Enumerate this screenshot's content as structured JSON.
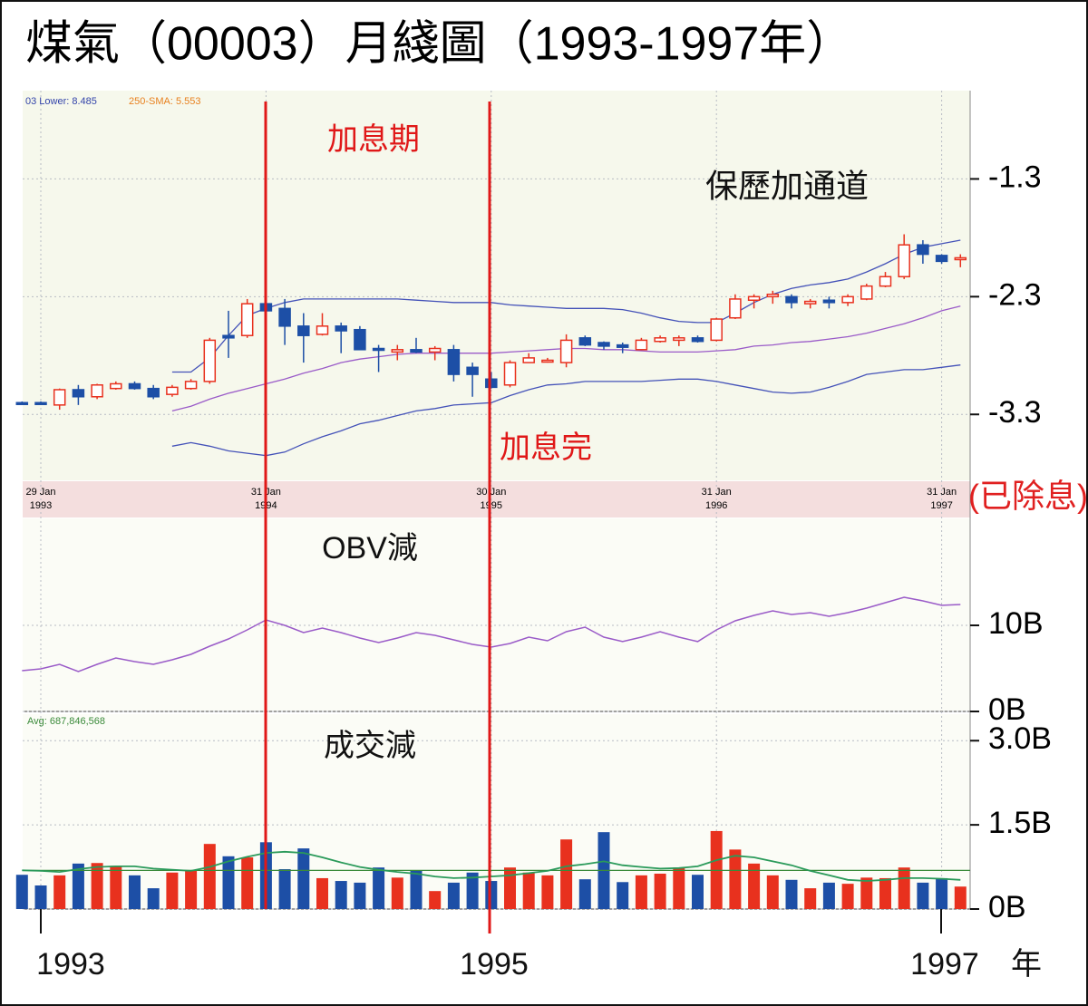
{
  "title": "煤氣（00003）月綫圖（1993-1997年）",
  "chart_data": [
    {
      "type": "candlestick",
      "legend_texts": [
        "03 Lower: 8.485",
        "250-SMA: 5.553"
      ],
      "annotations": [
        "加息期",
        "加息完",
        "保歷加通道"
      ],
      "note": "(已除息)",
      "categories": [
        null,
        "29 Jan\n1993",
        null,
        null,
        null,
        null,
        null,
        null,
        null,
        null,
        null,
        null,
        null,
        "31 Jan\n1994",
        null,
        null,
        null,
        null,
        null,
        null,
        null,
        null,
        null,
        null,
        null,
        "30 Jan\n1995",
        null,
        null,
        null,
        null,
        null,
        null,
        null,
        null,
        null,
        null,
        null,
        "31 Jan\n1996",
        null,
        null,
        null,
        null,
        null,
        null,
        null,
        null,
        null,
        null,
        null,
        "31 Jan\n1997",
        null
      ],
      "open": [
        -3.2,
        -3.2,
        -3.22,
        -3.09,
        -3.15,
        -3.08,
        -3.04,
        -3.08,
        -3.13,
        -3.08,
        -3.02,
        -2.63,
        -2.63,
        -2.36,
        -2.4,
        -2.55,
        -2.62,
        -2.55,
        -2.58,
        -2.74,
        -2.77,
        -2.75,
        -2.77,
        -2.75,
        -2.9,
        -3.0,
        -3.05,
        -2.86,
        -2.85,
        -2.86,
        -2.65,
        -2.69,
        -2.71,
        -2.75,
        -2.68,
        -2.67,
        -2.65,
        -2.67,
        -2.48,
        -2.33,
        -2.3,
        -2.3,
        -2.36,
        -2.33,
        -2.35,
        -2.32,
        -2.21,
        -2.13,
        -1.86,
        -1.95,
        -1.98
      ],
      "high": [
        -3.19,
        -3.19,
        -3.08,
        -3.05,
        -3.04,
        -3.02,
        -3.02,
        -3.05,
        -3.05,
        -3.0,
        -2.65,
        -2.42,
        -2.32,
        -2.28,
        -2.32,
        -2.44,
        -2.44,
        -2.52,
        -2.55,
        -2.71,
        -2.71,
        -2.65,
        -2.72,
        -2.71,
        -2.86,
        -2.94,
        -2.84,
        -2.78,
        -2.82,
        -2.62,
        -2.63,
        -2.68,
        -2.69,
        -2.65,
        -2.63,
        -2.63,
        -2.63,
        -2.48,
        -2.28,
        -2.28,
        -2.25,
        -2.28,
        -2.32,
        -2.3,
        -2.28,
        -2.19,
        -2.09,
        -1.77,
        -1.82,
        -1.94,
        -1.94
      ],
      "low": [
        -3.22,
        -3.22,
        -3.26,
        -3.22,
        -3.17,
        -3.09,
        -3.09,
        -3.17,
        -3.15,
        -3.09,
        -3.04,
        -2.82,
        -2.65,
        -2.44,
        -2.71,
        -2.86,
        -2.63,
        -2.78,
        -2.75,
        -2.94,
        -2.84,
        -2.78,
        -2.84,
        -3.02,
        -3.15,
        -3.08,
        -3.07,
        -2.86,
        -2.86,
        -2.9,
        -2.72,
        -2.75,
        -2.78,
        -2.75,
        -2.69,
        -2.72,
        -2.69,
        -2.68,
        -2.49,
        -2.4,
        -2.36,
        -2.4,
        -2.4,
        -2.4,
        -2.38,
        -2.33,
        -2.22,
        -2.15,
        -2.02,
        -2.02,
        -2.05
      ],
      "close": [
        -3.21,
        -3.21,
        -3.09,
        -3.15,
        -3.05,
        -3.04,
        -3.08,
        -3.15,
        -3.07,
        -3.02,
        -2.67,
        -2.65,
        -2.36,
        -2.42,
        -2.55,
        -2.63,
        -2.55,
        -2.59,
        -2.75,
        -2.75,
        -2.75,
        -2.77,
        -2.74,
        -2.96,
        -2.96,
        -3.07,
        -2.86,
        -2.82,
        -2.84,
        -2.67,
        -2.71,
        -2.72,
        -2.73,
        -2.67,
        -2.65,
        -2.65,
        -2.68,
        -2.49,
        -2.32,
        -2.3,
        -2.28,
        -2.35,
        -2.34,
        -2.35,
        -2.3,
        -2.21,
        -2.13,
        -1.86,
        -1.94,
        -2.0,
        -1.97
      ],
      "up_color": "#e8311e",
      "down_color": "#1d4fa6",
      "bands": [
        {
          "color": "#4452b8",
          "values": [
            null,
            null,
            null,
            null,
            null,
            null,
            null,
            null,
            -2.94,
            -2.94,
            -2.82,
            -2.63,
            -2.46,
            -2.4,
            -2.35,
            -2.32,
            -2.32,
            -2.32,
            -2.32,
            -2.32,
            -2.32,
            -2.33,
            -2.34,
            -2.35,
            -2.35,
            -2.35,
            -2.37,
            -2.38,
            -2.39,
            -2.4,
            -2.4,
            -2.4,
            -2.41,
            -2.44,
            -2.48,
            -2.51,
            -2.52,
            -2.52,
            -2.44,
            -2.35,
            -2.28,
            -2.23,
            -2.2,
            -2.18,
            -2.15,
            -2.09,
            -2.02,
            -1.94,
            -1.88,
            -1.85,
            -1.82
          ]
        },
        {
          "color": "#9a5bc8",
          "values": [
            null,
            null,
            null,
            null,
            null,
            null,
            null,
            null,
            -3.27,
            -3.23,
            -3.17,
            -3.12,
            -3.08,
            -3.04,
            -3.0,
            -2.95,
            -2.91,
            -2.86,
            -2.83,
            -2.81,
            -2.79,
            -2.78,
            -2.78,
            -2.78,
            -2.78,
            -2.78,
            -2.77,
            -2.76,
            -2.75,
            -2.74,
            -2.74,
            -2.75,
            -2.75,
            -2.76,
            -2.77,
            -2.77,
            -2.77,
            -2.76,
            -2.75,
            -2.72,
            -2.71,
            -2.69,
            -2.68,
            -2.66,
            -2.64,
            -2.61,
            -2.57,
            -2.53,
            -2.48,
            -2.42,
            -2.38
          ]
        },
        {
          "color": "#4452b8",
          "values": [
            null,
            null,
            null,
            null,
            null,
            null,
            null,
            null,
            -3.57,
            -3.54,
            -3.57,
            -3.61,
            -3.63,
            -3.65,
            -3.62,
            -3.55,
            -3.49,
            -3.44,
            -3.38,
            -3.35,
            -3.31,
            -3.27,
            -3.25,
            -3.22,
            -3.21,
            -3.2,
            -3.14,
            -3.09,
            -3.05,
            -3.04,
            -3.02,
            -3.02,
            -3.02,
            -3.02,
            -3.01,
            -3.0,
            -3.0,
            -3.02,
            -3.05,
            -3.08,
            -3.11,
            -3.12,
            -3.11,
            -3.07,
            -3.02,
            -2.96,
            -2.94,
            -2.92,
            -2.92,
            -2.9,
            -2.88
          ]
        }
      ],
      "ylim": [
        -3.86,
        -0.55
      ],
      "yticks": [
        -1.3,
        -2.3,
        -3.3
      ],
      "grid": true
    },
    {
      "type": "line",
      "title": "OBV減",
      "color": "#9a5bc8",
      "values": [
        4.74,
        4.95,
        5.47,
        4.63,
        5.47,
        6.21,
        5.79,
        5.47,
        6.0,
        6.63,
        7.58,
        8.42,
        9.47,
        10.63,
        10.0,
        9.16,
        9.68,
        9.16,
        8.53,
        8.0,
        8.53,
        9.16,
        8.84,
        8.32,
        7.79,
        7.47,
        7.89,
        8.63,
        8.21,
        9.26,
        9.79,
        8.63,
        8.11,
        8.63,
        9.26,
        8.63,
        8.11,
        9.47,
        10.53,
        11.16,
        11.68,
        11.26,
        11.47,
        11.05,
        11.47,
        12.0,
        12.63,
        13.26,
        12.84,
        12.32,
        12.42
      ],
      "ylim": [
        0,
        21.05
      ],
      "yticks": [
        {
          "value": 10,
          "label": "10B"
        },
        {
          "value": 0,
          "label": "0B"
        }
      ],
      "grid": true
    },
    {
      "type": "bar",
      "title": "成交減",
      "values": [
        0.61,
        0.42,
        0.6,
        0.81,
        0.82,
        0.77,
        0.6,
        0.37,
        0.65,
        0.69,
        1.16,
        0.94,
        0.92,
        1.19,
        0.71,
        1.08,
        0.55,
        0.5,
        0.47,
        0.74,
        0.56,
        0.69,
        0.32,
        0.47,
        0.65,
        0.5,
        0.74,
        0.65,
        0.6,
        1.24,
        0.53,
        1.37,
        0.48,
        0.6,
        0.63,
        0.74,
        0.61,
        1.39,
        1.06,
        0.81,
        0.6,
        0.52,
        0.37,
        0.47,
        0.45,
        0.56,
        0.55,
        0.74,
        0.47,
        0.55,
        0.4
      ],
      "average": {
        "value": 0.687846568,
        "label": "Avg: 687,846,568"
      },
      "average_color": "#3a8a3a",
      "moving_average": {
        "color": "#2a9a5a",
        "values": [
          0.69,
          0.68,
          0.66,
          0.71,
          0.75,
          0.76,
          0.76,
          0.72,
          0.7,
          0.68,
          0.75,
          0.85,
          0.93,
          1.0,
          1.02,
          1.0,
          0.92,
          0.83,
          0.75,
          0.7,
          0.66,
          0.63,
          0.58,
          0.55,
          0.56,
          0.58,
          0.6,
          0.64,
          0.68,
          0.76,
          0.8,
          0.85,
          0.78,
          0.75,
          0.72,
          0.73,
          0.76,
          0.87,
          0.95,
          0.92,
          0.85,
          0.78,
          0.68,
          0.6,
          0.52,
          0.5,
          0.52,
          0.55,
          0.55,
          0.54,
          0.52
        ]
      },
      "ylim": [
        0,
        3.44
      ],
      "yticks": [
        {
          "value": 3.0,
          "label": "3.0B"
        },
        {
          "value": 1.5,
          "label": "1.5B"
        },
        {
          "value": 0,
          "label": "0B"
        }
      ],
      "grid": true
    }
  ],
  "x_axis": {
    "labels": [
      "1993",
      "1995",
      "1997"
    ],
    "unit": "年"
  }
}
